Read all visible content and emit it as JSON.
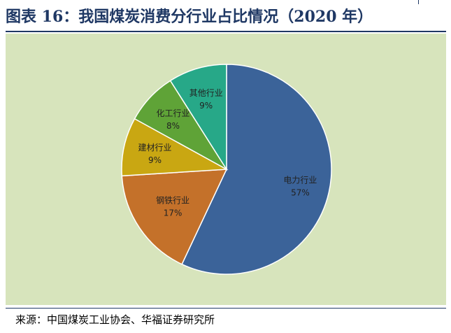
{
  "header": {
    "title": "图表 16：我国煤炭消费分行业占比情况（2020 年）"
  },
  "footer": {
    "source": "来源：中国煤炭工业协会、华福证券研究所"
  },
  "chart_data": {
    "type": "pie",
    "title": "图表 16：我国煤炭消费分行业占比情况（2020 年）",
    "categories": [
      "电力行业",
      "钢铁行业",
      "建材行业",
      "化工行业",
      "其他行业"
    ],
    "values": [
      57,
      17,
      9,
      8,
      9
    ],
    "value_labels": [
      "57%",
      "17%",
      "9%",
      "8%",
      "9%"
    ],
    "colors": [
      "#3b6399",
      "#c4712a",
      "#c9a712",
      "#5fa337",
      "#27a888"
    ],
    "start": "12 o'clock",
    "direction": "clockwise",
    "legend": "none",
    "background": "#d7e4bc"
  }
}
